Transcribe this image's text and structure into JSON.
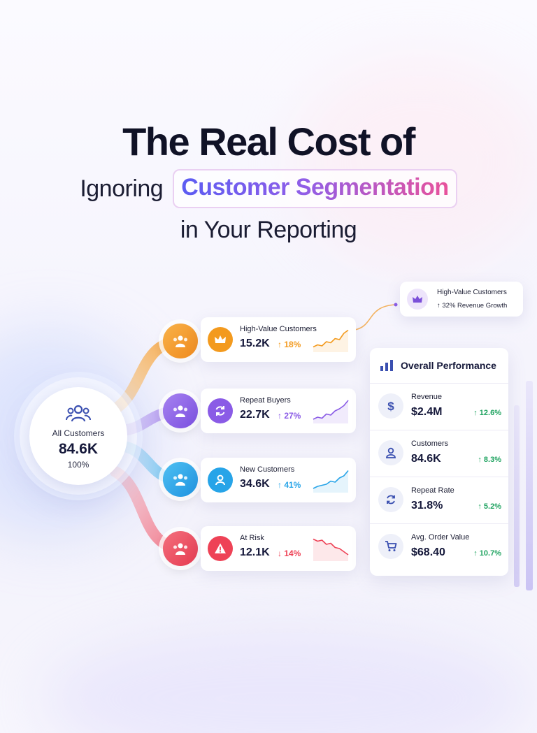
{
  "title": {
    "line1": "The Real Cost of",
    "line2_prefix": "Ignoring",
    "line2_highlight": "Customer Segmentation",
    "line3": "in Your Reporting"
  },
  "hub": {
    "label": "All Customers",
    "value": "84.6K",
    "percent": "100%",
    "icon": "users-icon"
  },
  "segments": [
    {
      "name": "High-Value Customers",
      "value": "15.2K",
      "change": "↑ 18%",
      "trend": "up",
      "color": "#f39a1e",
      "icon": "crown-icon",
      "spark": [
        0.15,
        0.25,
        0.2,
        0.4,
        0.35,
        0.55,
        0.5,
        0.8,
        0.95
      ]
    },
    {
      "name": "Repeat Buyers",
      "value": "22.7K",
      "change": "↑ 27%",
      "trend": "up",
      "color": "#8a5be6",
      "icon": "refresh-icon",
      "spark": [
        0.1,
        0.2,
        0.15,
        0.35,
        0.3,
        0.5,
        0.6,
        0.75,
        1.0
      ]
    },
    {
      "name": "New Customers",
      "value": "34.6K",
      "change": "↑ 41%",
      "trend": "up",
      "color": "#27a4e8",
      "icon": "user-icon",
      "spark": [
        0.1,
        0.2,
        0.25,
        0.3,
        0.45,
        0.4,
        0.6,
        0.7,
        0.95
      ]
    },
    {
      "name": "At Risk",
      "value": "12.1K",
      "change": "↓ 14%",
      "trend": "down",
      "color": "#ee4256",
      "icon": "alert-icon",
      "spark": [
        0.95,
        0.85,
        0.9,
        0.7,
        0.75,
        0.55,
        0.5,
        0.35,
        0.2
      ]
    }
  ],
  "callout": {
    "title": "High-Value Customers",
    "subtitle": "↑ 32% Revenue Growth",
    "icon": "crown-icon"
  },
  "performance": {
    "title": "Overall Performance",
    "icon": "bar-chart-icon",
    "rows": [
      {
        "label": "Revenue",
        "value": "$2.4M",
        "change": "↑ 12.6%",
        "icon": "dollar-icon"
      },
      {
        "label": "Customers",
        "value": "84.6K",
        "change": "↑ 8.3%",
        "icon": "user-icon"
      },
      {
        "label": "Repeat Rate",
        "value": "31.8%",
        "change": "↑ 5.2%",
        "icon": "refresh-icon"
      },
      {
        "label": "Avg. Order Value",
        "value": "$68.40",
        "change": "↑ 10.7%",
        "icon": "cart-icon"
      }
    ]
  },
  "colors": {
    "orange": "#f39a1e",
    "purple": "#8a5be6",
    "blue": "#27a4e8",
    "red": "#ee4256",
    "green": "#1fa360",
    "navy": "#15183a"
  }
}
